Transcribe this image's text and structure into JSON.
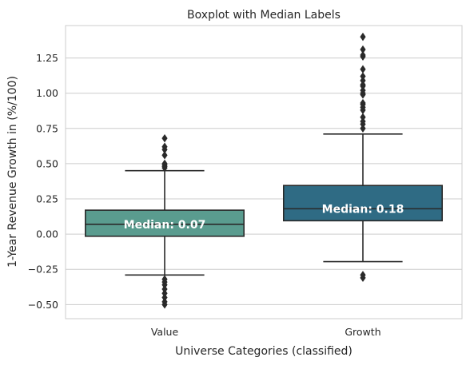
{
  "chart_data": {
    "type": "boxplot",
    "title": "Boxplot with Median Labels",
    "xlabel": "Universe Categories (classified)",
    "ylabel": "1-Year Revenue Growth in (%/100)",
    "ylim": [
      -0.6,
      1.48
    ],
    "yticks": [
      -0.5,
      -0.25,
      0.0,
      0.25,
      0.5,
      0.75,
      1.0,
      1.25
    ],
    "ytick_labels": [
      "−0.50",
      "−0.25",
      "0.00",
      "0.25",
      "0.50",
      "0.75",
      "1.00",
      "1.25"
    ],
    "grid": "horizontal",
    "categories": [
      "Value",
      "Growth"
    ],
    "boxes": [
      {
        "category": "Value",
        "color": "#5a9c8f",
        "whisker_low": -0.29,
        "q1": -0.015,
        "median": 0.07,
        "q3": 0.17,
        "whisker_high": 0.45,
        "median_label": "Median: 0.07",
        "outliers": [
          0.68,
          0.62,
          0.6,
          0.56,
          0.5,
          0.49,
          0.48,
          0.47,
          -0.32,
          -0.34,
          -0.36,
          -0.39,
          -0.42,
          -0.45,
          -0.48,
          -0.5
        ]
      },
      {
        "category": "Growth",
        "color": "#2f6b84",
        "whisker_low": -0.195,
        "q1": 0.095,
        "median": 0.18,
        "q3": 0.345,
        "whisker_high": 0.71,
        "median_label": "Median: 0.18",
        "outliers": [
          1.4,
          1.31,
          1.27,
          1.26,
          1.17,
          1.12,
          1.09,
          1.06,
          1.05,
          1.02,
          1.0,
          0.99,
          0.93,
          0.92,
          0.9,
          0.88,
          0.83,
          0.8,
          0.78,
          0.75,
          -0.29,
          -0.31
        ]
      }
    ]
  }
}
